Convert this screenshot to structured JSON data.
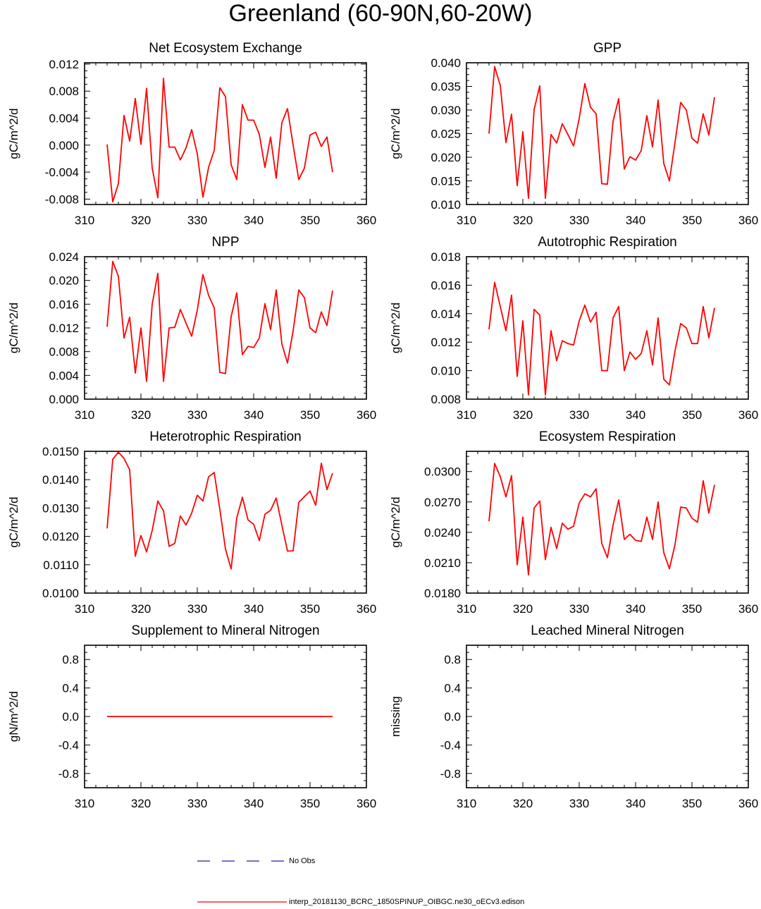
{
  "page": {
    "title": "Greenland (60-90N,60-20W)"
  },
  "legend": {
    "obs_label": "No Obs",
    "obs_color": "#1f1fa0",
    "model_label": "interp_20181130_BCRC_1850SPINUP_OIBGC.ne30_oECv3.edison",
    "model_color": "#ff0000"
  },
  "chart_data": [
    {
      "type": "line",
      "title": "Net Ecosystem Exchange",
      "ylabel": "gC/m^2/d",
      "xlim": [
        310,
        360
      ],
      "ylim": [
        -0.0088,
        0.0122
      ],
      "xticks": [
        310,
        320,
        330,
        340,
        350,
        360
      ],
      "yticks": [
        -0.008,
        -0.004,
        0.0,
        0.004,
        0.008,
        0.012
      ],
      "ytick_labels": [
        "-0.008",
        "-0.004",
        "0.000",
        "0.004",
        "0.008",
        "0.012"
      ],
      "x": [
        314,
        315,
        316,
        317,
        318,
        319,
        320,
        321,
        322,
        323,
        324,
        325,
        326,
        327,
        328,
        329,
        330,
        331,
        332,
        333,
        334,
        335,
        336,
        337,
        338,
        339,
        340,
        341,
        342,
        343,
        344,
        345,
        346,
        347,
        348,
        349,
        350,
        351,
        352,
        353,
        354
      ],
      "series": [
        {
          "name": "interp_20181130_BCRC_1850SPINUP_OIBGC.ne30_oECv3.edison",
          "values": [
            0.0001,
            -0.0084,
            -0.0057,
            0.0044,
            0.0006,
            0.0069,
            0.0001,
            0.0084,
            -0.0034,
            -0.0078,
            0.0099,
            -0.0003,
            -0.0003,
            -0.0022,
            -0.0004,
            0.0023,
            -0.0013,
            -0.0077,
            -0.0033,
            -0.0008,
            0.0085,
            0.0072,
            -0.0029,
            -0.0051,
            0.006,
            0.0037,
            0.0037,
            0.0016,
            -0.0033,
            0.0012,
            -0.0049,
            0.0033,
            0.0054,
            0.0,
            -0.0051,
            -0.0034,
            0.0015,
            0.0019,
            -0.0002,
            0.0012,
            -0.004
          ]
        }
      ]
    },
    {
      "type": "line",
      "title": "GPP",
      "ylabel": "gC/m^2/d",
      "xlim": [
        310,
        360
      ],
      "ylim": [
        0.01,
        0.04
      ],
      "xticks": [
        310,
        320,
        330,
        340,
        350,
        360
      ],
      "yticks": [
        0.01,
        0.015,
        0.02,
        0.025,
        0.03,
        0.035,
        0.04
      ],
      "ytick_labels": [
        "0.010",
        "0.015",
        "0.020",
        "0.025",
        "0.030",
        "0.035",
        "0.040"
      ],
      "x": [
        314,
        315,
        316,
        317,
        318,
        319,
        320,
        321,
        322,
        323,
        324,
        325,
        326,
        327,
        328,
        329,
        330,
        331,
        332,
        333,
        334,
        335,
        336,
        337,
        338,
        339,
        340,
        341,
        342,
        343,
        344,
        345,
        346,
        347,
        348,
        349,
        350,
        351,
        352,
        353,
        354
      ],
      "series": [
        {
          "name": "interp_20181130_BCRC_1850SPINUP_OIBGC.ne30_oECv3.edison",
          "values": [
            0.025,
            0.0392,
            0.0352,
            0.0231,
            0.0291,
            0.014,
            0.0254,
            0.0113,
            0.0301,
            0.0351,
            0.0113,
            0.0248,
            0.023,
            0.0271,
            0.0248,
            0.0224,
            0.0282,
            0.0356,
            0.0306,
            0.0292,
            0.0144,
            0.0143,
            0.0276,
            0.0324,
            0.0175,
            0.0201,
            0.0194,
            0.0214,
            0.0288,
            0.0222,
            0.0321,
            0.0187,
            0.015,
            0.0232,
            0.0316,
            0.03,
            0.024,
            0.023,
            0.0292,
            0.0247,
            0.0327
          ]
        }
      ]
    },
    {
      "type": "line",
      "title": "NPP",
      "ylabel": "gC/m^2/d",
      "xlim": [
        310,
        360
      ],
      "ylim": [
        0.0,
        0.024
      ],
      "xticks": [
        310,
        320,
        330,
        340,
        350,
        360
      ],
      "yticks": [
        0.0,
        0.004,
        0.008,
        0.012,
        0.016,
        0.02,
        0.024
      ],
      "ytick_labels": [
        "0.000",
        "0.004",
        "0.008",
        "0.012",
        "0.016",
        "0.020",
        "0.024"
      ],
      "x": [
        314,
        315,
        316,
        317,
        318,
        319,
        320,
        321,
        322,
        323,
        324,
        325,
        326,
        327,
        328,
        329,
        330,
        331,
        332,
        333,
        334,
        335,
        336,
        337,
        338,
        339,
        340,
        341,
        342,
        343,
        344,
        345,
        346,
        347,
        348,
        349,
        350,
        351,
        352,
        353,
        354
      ],
      "series": [
        {
          "name": "interp_20181130_BCRC_1850SPINUP_OIBGC.ne30_oECv3.edison",
          "values": [
            0.0122,
            0.0232,
            0.0207,
            0.0103,
            0.0138,
            0.0044,
            0.012,
            0.003,
            0.016,
            0.0212,
            0.003,
            0.012,
            0.0121,
            0.0151,
            0.0128,
            0.0106,
            0.015,
            0.021,
            0.0175,
            0.0154,
            0.0045,
            0.0043,
            0.0139,
            0.0179,
            0.0075,
            0.0089,
            0.0087,
            0.0103,
            0.0161,
            0.0117,
            0.0184,
            0.0093,
            0.0061,
            0.0115,
            0.0184,
            0.0171,
            0.012,
            0.0112,
            0.0147,
            0.0124,
            0.0183
          ]
        }
      ]
    },
    {
      "type": "line",
      "title": "Autotrophic Respiration",
      "ylabel": "gC/m^2/d",
      "xlim": [
        310,
        360
      ],
      "ylim": [
        0.008,
        0.018
      ],
      "xticks": [
        310,
        320,
        330,
        340,
        350,
        360
      ],
      "yticks": [
        0.008,
        0.01,
        0.012,
        0.014,
        0.016,
        0.018
      ],
      "ytick_labels": [
        "0.008",
        "0.010",
        "0.012",
        "0.014",
        "0.016",
        "0.018"
      ],
      "x": [
        314,
        315,
        316,
        317,
        318,
        319,
        320,
        321,
        322,
        323,
        324,
        325,
        326,
        327,
        328,
        329,
        330,
        331,
        332,
        333,
        334,
        335,
        336,
        337,
        338,
        339,
        340,
        341,
        342,
        343,
        344,
        345,
        346,
        347,
        348,
        349,
        350,
        351,
        352,
        353,
        354
      ],
      "series": [
        {
          "name": "interp_20181130_BCRC_1850SPINUP_OIBGC.ne30_oECv3.edison",
          "values": [
            0.0129,
            0.0162,
            0.0145,
            0.0128,
            0.0153,
            0.0096,
            0.0135,
            0.0083,
            0.0143,
            0.0139,
            0.0083,
            0.0128,
            0.0107,
            0.0121,
            0.0119,
            0.0118,
            0.0135,
            0.0146,
            0.0134,
            0.0141,
            0.01,
            0.01,
            0.0137,
            0.0145,
            0.01,
            0.0113,
            0.0108,
            0.0112,
            0.0128,
            0.0104,
            0.0137,
            0.0094,
            0.009,
            0.0114,
            0.0133,
            0.013,
            0.0119,
            0.0119,
            0.0145,
            0.0123,
            0.0144
          ]
        }
      ]
    },
    {
      "type": "line",
      "title": "Heterotrophic Respiration",
      "ylabel": "gC/m^2/d",
      "xlim": [
        310,
        360
      ],
      "ylim": [
        0.01,
        0.015
      ],
      "xticks": [
        310,
        320,
        330,
        340,
        350,
        360
      ],
      "yticks": [
        0.01,
        0.011,
        0.012,
        0.013,
        0.014,
        0.015
      ],
      "ytick_labels": [
        "0.0100",
        "0.0110",
        "0.0120",
        "0.0130",
        "0.0140",
        "0.0150"
      ],
      "x": [
        314,
        315,
        316,
        317,
        318,
        319,
        320,
        321,
        322,
        323,
        324,
        325,
        326,
        327,
        328,
        329,
        330,
        331,
        332,
        333,
        334,
        335,
        336,
        337,
        338,
        339,
        340,
        341,
        342,
        343,
        344,
        345,
        346,
        347,
        348,
        349,
        350,
        351,
        352,
        353,
        354
      ],
      "series": [
        {
          "name": "interp_20181130_BCRC_1850SPINUP_OIBGC.ne30_oECv3.edison",
          "values": [
            0.01228,
            0.01472,
            0.01497,
            0.01475,
            0.01435,
            0.0113,
            0.01203,
            0.01145,
            0.01221,
            0.01325,
            0.0129,
            0.01165,
            0.01175,
            0.01272,
            0.0124,
            0.01282,
            0.01345,
            0.01325,
            0.0141,
            0.01425,
            0.01295,
            0.01155,
            0.01085,
            0.01265,
            0.01338,
            0.01258,
            0.01243,
            0.01185,
            0.01278,
            0.01292,
            0.01335,
            0.0124,
            0.01148,
            0.01149,
            0.0132,
            0.0134,
            0.0136,
            0.0131,
            0.01458,
            0.01365,
            0.01423
          ]
        }
      ]
    },
    {
      "type": "line",
      "title": "Ecosystem Respiration",
      "ylabel": "gC/m^2/d",
      "xlim": [
        310,
        360
      ],
      "ylim": [
        0.018,
        0.032
      ],
      "xticks": [
        310,
        320,
        330,
        340,
        350,
        360
      ],
      "yticks": [
        0.018,
        0.021,
        0.024,
        0.027,
        0.03
      ],
      "ytick_labels": [
        "0.0180",
        "0.0210",
        "0.0240",
        "0.0270",
        "0.0300"
      ],
      "x": [
        314,
        315,
        316,
        317,
        318,
        319,
        320,
        321,
        322,
        323,
        324,
        325,
        326,
        327,
        328,
        329,
        330,
        331,
        332,
        333,
        334,
        335,
        336,
        337,
        338,
        339,
        340,
        341,
        342,
        343,
        344,
        345,
        346,
        347,
        348,
        349,
        350,
        351,
        352,
        353,
        354
      ],
      "series": [
        {
          "name": "interp_20181130_BCRC_1850SPINUP_OIBGC.ne30_oECv3.edison",
          "values": [
            0.0251,
            0.0308,
            0.0295,
            0.0275,
            0.0296,
            0.0208,
            0.0255,
            0.0198,
            0.0264,
            0.0271,
            0.0213,
            0.0245,
            0.0224,
            0.0249,
            0.0243,
            0.0246,
            0.0269,
            0.0278,
            0.0275,
            0.0283,
            0.0229,
            0.0215,
            0.0247,
            0.0272,
            0.0233,
            0.0238,
            0.0232,
            0.0231,
            0.0255,
            0.0233,
            0.027,
            0.022,
            0.0204,
            0.0228,
            0.0265,
            0.0264,
            0.0254,
            0.025,
            0.0291,
            0.0259,
            0.0287
          ]
        }
      ]
    },
    {
      "type": "line",
      "title": "Supplement to Mineral Nitrogen",
      "ylabel": "gN/m^2/d",
      "xlim": [
        310,
        360
      ],
      "ylim": [
        -1.0,
        1.0
      ],
      "xticks": [
        310,
        320,
        330,
        340,
        350,
        360
      ],
      "yticks": [
        -0.8,
        -0.4,
        0.0,
        0.4,
        0.8
      ],
      "ytick_labels": [
        "-0.8",
        "-0.4",
        "0.0",
        "0.4",
        "0.8"
      ],
      "x": [
        314,
        354
      ],
      "series": [
        {
          "name": "interp_20181130_BCRC_1850SPINUP_OIBGC.ne30_oECv3.edison",
          "values": [
            0.0,
            0.0
          ]
        }
      ]
    },
    {
      "type": "line",
      "title": "Leached Mineral Nitrogen",
      "ylabel": "missing",
      "xlim": [
        310,
        360
      ],
      "ylim": [
        -1.0,
        1.0
      ],
      "xticks": [
        310,
        320,
        330,
        340,
        350,
        360
      ],
      "yticks": [
        -0.8,
        -0.4,
        0.0,
        0.4,
        0.8
      ],
      "ytick_labels": [
        "-0.8",
        "-0.4",
        "0.0",
        "0.4",
        "0.8"
      ],
      "x": [],
      "series": []
    }
  ]
}
